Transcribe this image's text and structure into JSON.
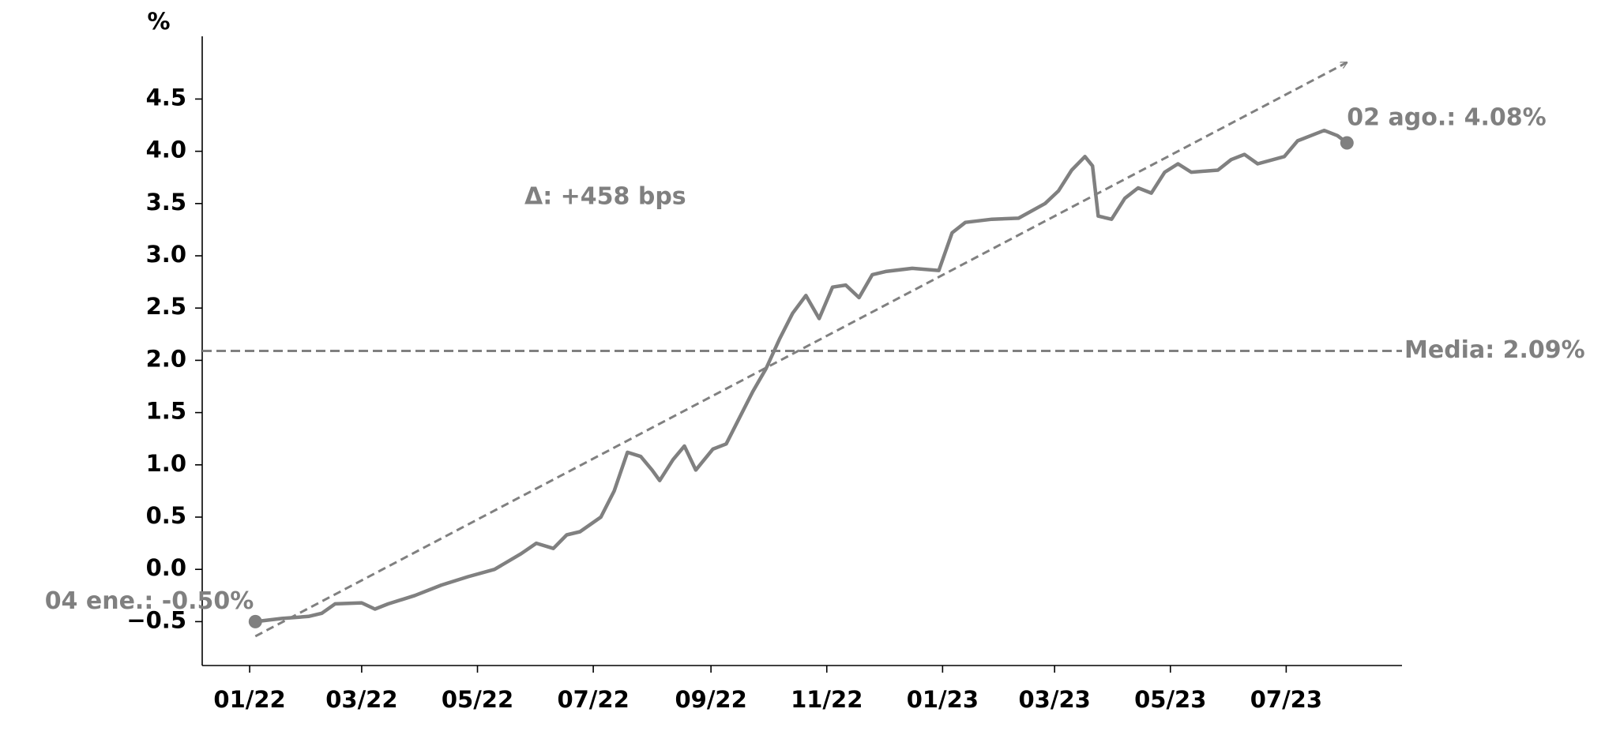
{
  "chart_data": {
    "type": "line",
    "y_label": "%",
    "annotation": "Δ: +458 bps",
    "start_label": "04 ene.: -0.50%",
    "end_label": "02 ago.: 4.08%",
    "mean": {
      "value": 2.09,
      "label": "Media: 2.09%"
    },
    "trend": {
      "start": [
        "2022-01-04",
        -0.64
      ],
      "end": [
        "2023-08-02",
        4.85
      ]
    },
    "color": "#808080",
    "x": [
      "2022-01-04",
      "2022-01-18",
      "2022-02-01",
      "2022-02-08",
      "2022-02-15",
      "2022-03-01",
      "2022-03-08",
      "2022-03-15",
      "2022-03-29",
      "2022-04-12",
      "2022-04-26",
      "2022-05-10",
      "2022-05-24",
      "2022-06-01",
      "2022-06-10",
      "2022-06-17",
      "2022-06-24",
      "2022-07-05",
      "2022-07-12",
      "2022-07-19",
      "2022-07-26",
      "2022-08-01",
      "2022-08-05",
      "2022-08-12",
      "2022-08-18",
      "2022-08-24",
      "2022-09-02",
      "2022-09-09",
      "2022-09-16",
      "2022-09-23",
      "2022-09-30",
      "2022-10-07",
      "2022-10-14",
      "2022-10-21",
      "2022-10-28",
      "2022-11-04",
      "2022-11-11",
      "2022-11-18",
      "2022-11-25",
      "2022-12-02",
      "2022-12-16",
      "2022-12-30",
      "2023-01-06",
      "2023-01-13",
      "2023-01-27",
      "2023-02-10",
      "2023-02-24",
      "2023-03-03",
      "2023-03-10",
      "2023-03-17",
      "2023-03-21",
      "2023-03-24",
      "2023-03-31",
      "2023-04-07",
      "2023-04-14",
      "2023-04-21",
      "2023-04-28",
      "2023-05-05",
      "2023-05-12",
      "2023-05-26",
      "2023-06-02",
      "2023-06-09",
      "2023-06-16",
      "2023-06-30",
      "2023-07-07",
      "2023-07-14",
      "2023-07-21",
      "2023-07-28",
      "2023-08-02"
    ],
    "values": [
      -0.5,
      -0.47,
      -0.45,
      -0.42,
      -0.33,
      -0.32,
      -0.38,
      -0.33,
      -0.25,
      -0.15,
      -0.07,
      0.0,
      0.15,
      0.25,
      0.2,
      0.33,
      0.36,
      0.5,
      0.75,
      1.12,
      1.08,
      0.95,
      0.85,
      1.05,
      1.18,
      0.95,
      1.15,
      1.2,
      1.45,
      1.7,
      1.92,
      2.2,
      2.45,
      2.62,
      2.4,
      2.7,
      2.72,
      2.6,
      2.82,
      2.85,
      2.88,
      2.86,
      3.22,
      3.32,
      3.35,
      3.36,
      3.5,
      3.62,
      3.82,
      3.95,
      3.86,
      3.38,
      3.35,
      3.55,
      3.65,
      3.6,
      3.8,
      3.88,
      3.8,
      3.82,
      3.92,
      3.97,
      3.88,
      3.95,
      4.1,
      4.15,
      4.2,
      4.15,
      4.08
    ],
    "xlim": [
      "2021-12-07",
      "2023-08-31"
    ],
    "xticks": [
      {
        "value": "2022-01-01",
        "label": "01/22"
      },
      {
        "value": "2022-03-01",
        "label": "03/22"
      },
      {
        "value": "2022-05-01",
        "label": "05/22"
      },
      {
        "value": "2022-07-01",
        "label": "07/22"
      },
      {
        "value": "2022-09-01",
        "label": "09/22"
      },
      {
        "value": "2022-11-01",
        "label": "11/22"
      },
      {
        "value": "2023-01-01",
        "label": "01/23"
      },
      {
        "value": "2023-03-01",
        "label": "03/23"
      },
      {
        "value": "2023-05-01",
        "label": "05/23"
      },
      {
        "value": "2023-07-01",
        "label": "07/23"
      }
    ],
    "ylim": [
      -0.92,
      5.1
    ],
    "yticks": [
      {
        "value": -0.5,
        "label": "−0.5"
      },
      {
        "value": 0,
        "label": "0.0"
      },
      0.5,
      {
        "value": 1,
        "label": "1.0"
      },
      1.5,
      {
        "value": 2,
        "label": "2.0"
      },
      2.5,
      {
        "value": 3,
        "label": "3.0"
      },
      3.5,
      {
        "value": 4,
        "label": "4.0"
      },
      4.5
    ]
  }
}
